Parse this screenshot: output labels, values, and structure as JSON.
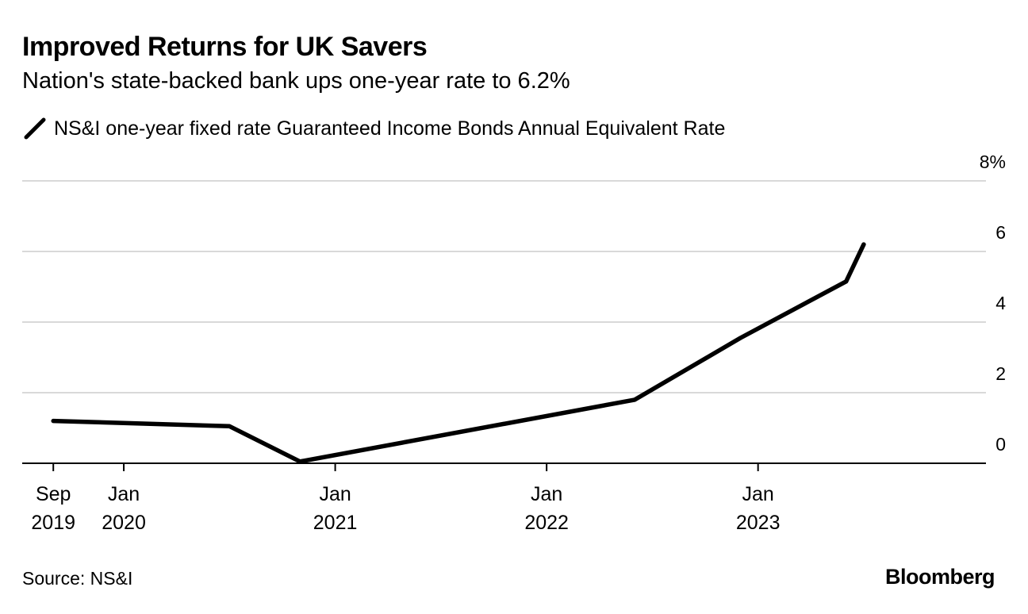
{
  "chart_data": {
    "type": "line",
    "title": "Improved Returns for UK Savers",
    "subtitle": "Nation's state-backed bank ups one-year rate to 6.2%",
    "series": [
      {
        "name": "NS&I one-year fixed rate Guaranteed Income Bonds Annual Equivalent Rate",
        "points": [
          {
            "x": "2019-09",
            "y": 1.2
          },
          {
            "x": "2020-07",
            "y": 1.05
          },
          {
            "x": "2020-11",
            "y": 0.05
          },
          {
            "x": "2022-06",
            "y": 1.8
          },
          {
            "x": "2022-12",
            "y": 3.55
          },
          {
            "x": "2023-06",
            "y": 5.15
          },
          {
            "x": "2023-07",
            "y": 6.2
          }
        ]
      }
    ],
    "ylim": [
      0,
      8
    ],
    "yticks": [
      {
        "value": 0,
        "label": "0"
      },
      {
        "value": 2,
        "label": "2"
      },
      {
        "value": 4,
        "label": "4"
      },
      {
        "value": 6,
        "label": "6"
      },
      {
        "value": 8,
        "label": "8%"
      }
    ],
    "xlim": [
      "2019-08",
      "2023-12"
    ],
    "xticks": [
      {
        "x": "2019-09",
        "line1": "Sep",
        "line2": "2019"
      },
      {
        "x": "2020-01",
        "line1": "Jan",
        "line2": "2020"
      },
      {
        "x": "2021-01",
        "line1": "Jan",
        "line2": "2021"
      },
      {
        "x": "2022-01",
        "line1": "Jan",
        "line2": "2022"
      },
      {
        "x": "2023-01",
        "line1": "Jan",
        "line2": "2023"
      }
    ],
    "grid": true,
    "yaxis_side": "right",
    "legend_position": "top-left",
    "source": "Source: NS&I",
    "brand": "Bloomberg",
    "line_color": "#000000",
    "grid_color": "#d9d9d9"
  }
}
